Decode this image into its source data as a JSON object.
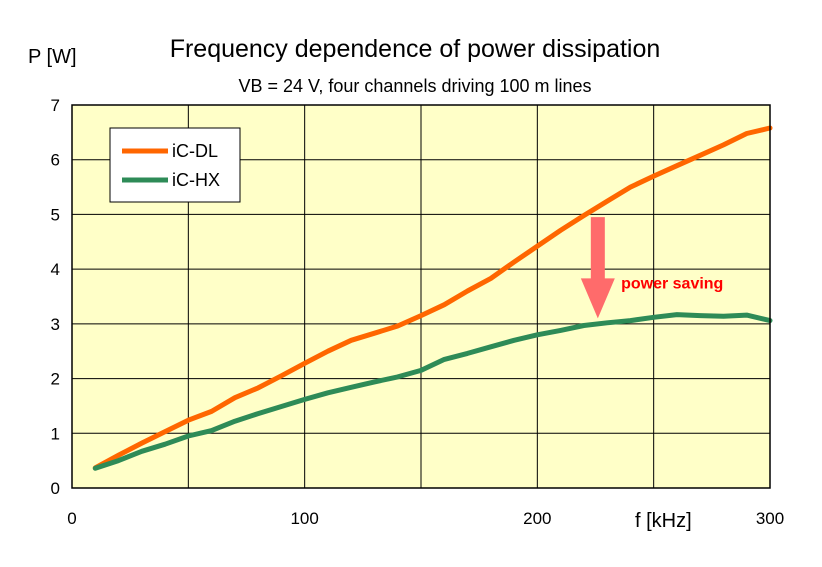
{
  "chart_data": {
    "type": "line",
    "title": "Frequency dependence of power dissipation",
    "subtitle": "VB = 24 V, four channels driving 100 m lines",
    "ylabel": "P [W]",
    "xlabel": "f [kHz]",
    "xlim": [
      0,
      300
    ],
    "ylim": [
      0,
      7
    ],
    "xticks": [
      0,
      100,
      200,
      300
    ],
    "yticks": [
      0,
      1,
      2,
      3,
      4,
      5,
      6,
      7
    ],
    "grid": true,
    "legend_position": "top-left",
    "plot_background": "#ffffc8",
    "series": [
      {
        "name": "iC-DL",
        "color": "#ff6600",
        "x": [
          10,
          20,
          30,
          40,
          50,
          60,
          70,
          80,
          90,
          100,
          110,
          120,
          130,
          140,
          150,
          160,
          170,
          180,
          190,
          200,
          210,
          220,
          230,
          240,
          250,
          260,
          270,
          280,
          290,
          300
        ],
        "y": [
          0.37,
          0.6,
          0.82,
          1.03,
          1.24,
          1.4,
          1.65,
          1.83,
          2.05,
          2.28,
          2.5,
          2.7,
          2.83,
          2.96,
          3.15,
          3.35,
          3.6,
          3.83,
          4.13,
          4.42,
          4.71,
          4.98,
          5.24,
          5.5,
          5.7,
          5.89,
          6.08,
          6.27,
          6.48,
          6.58
        ]
      },
      {
        "name": "iC-HX",
        "color": "#2e8b57",
        "x": [
          10,
          20,
          30,
          40,
          50,
          60,
          70,
          80,
          90,
          100,
          110,
          120,
          130,
          140,
          150,
          160,
          170,
          180,
          190,
          200,
          210,
          220,
          230,
          240,
          250,
          260,
          270,
          280,
          290,
          300
        ],
        "y": [
          0.36,
          0.5,
          0.67,
          0.8,
          0.95,
          1.05,
          1.22,
          1.36,
          1.49,
          1.62,
          1.74,
          1.84,
          1.94,
          2.03,
          2.15,
          2.35,
          2.46,
          2.58,
          2.7,
          2.8,
          2.88,
          2.97,
          3.02,
          3.06,
          3.12,
          3.17,
          3.15,
          3.14,
          3.16,
          3.06
        ]
      }
    ],
    "annotation": {
      "text": "power saving",
      "color": "#ff0000",
      "arrow_color": "#ff6b6b",
      "arrow_x": 226,
      "arrow_from_y": 4.95,
      "arrow_to_y": 3.1,
      "text_x": 236,
      "text_y": 3.65
    }
  }
}
